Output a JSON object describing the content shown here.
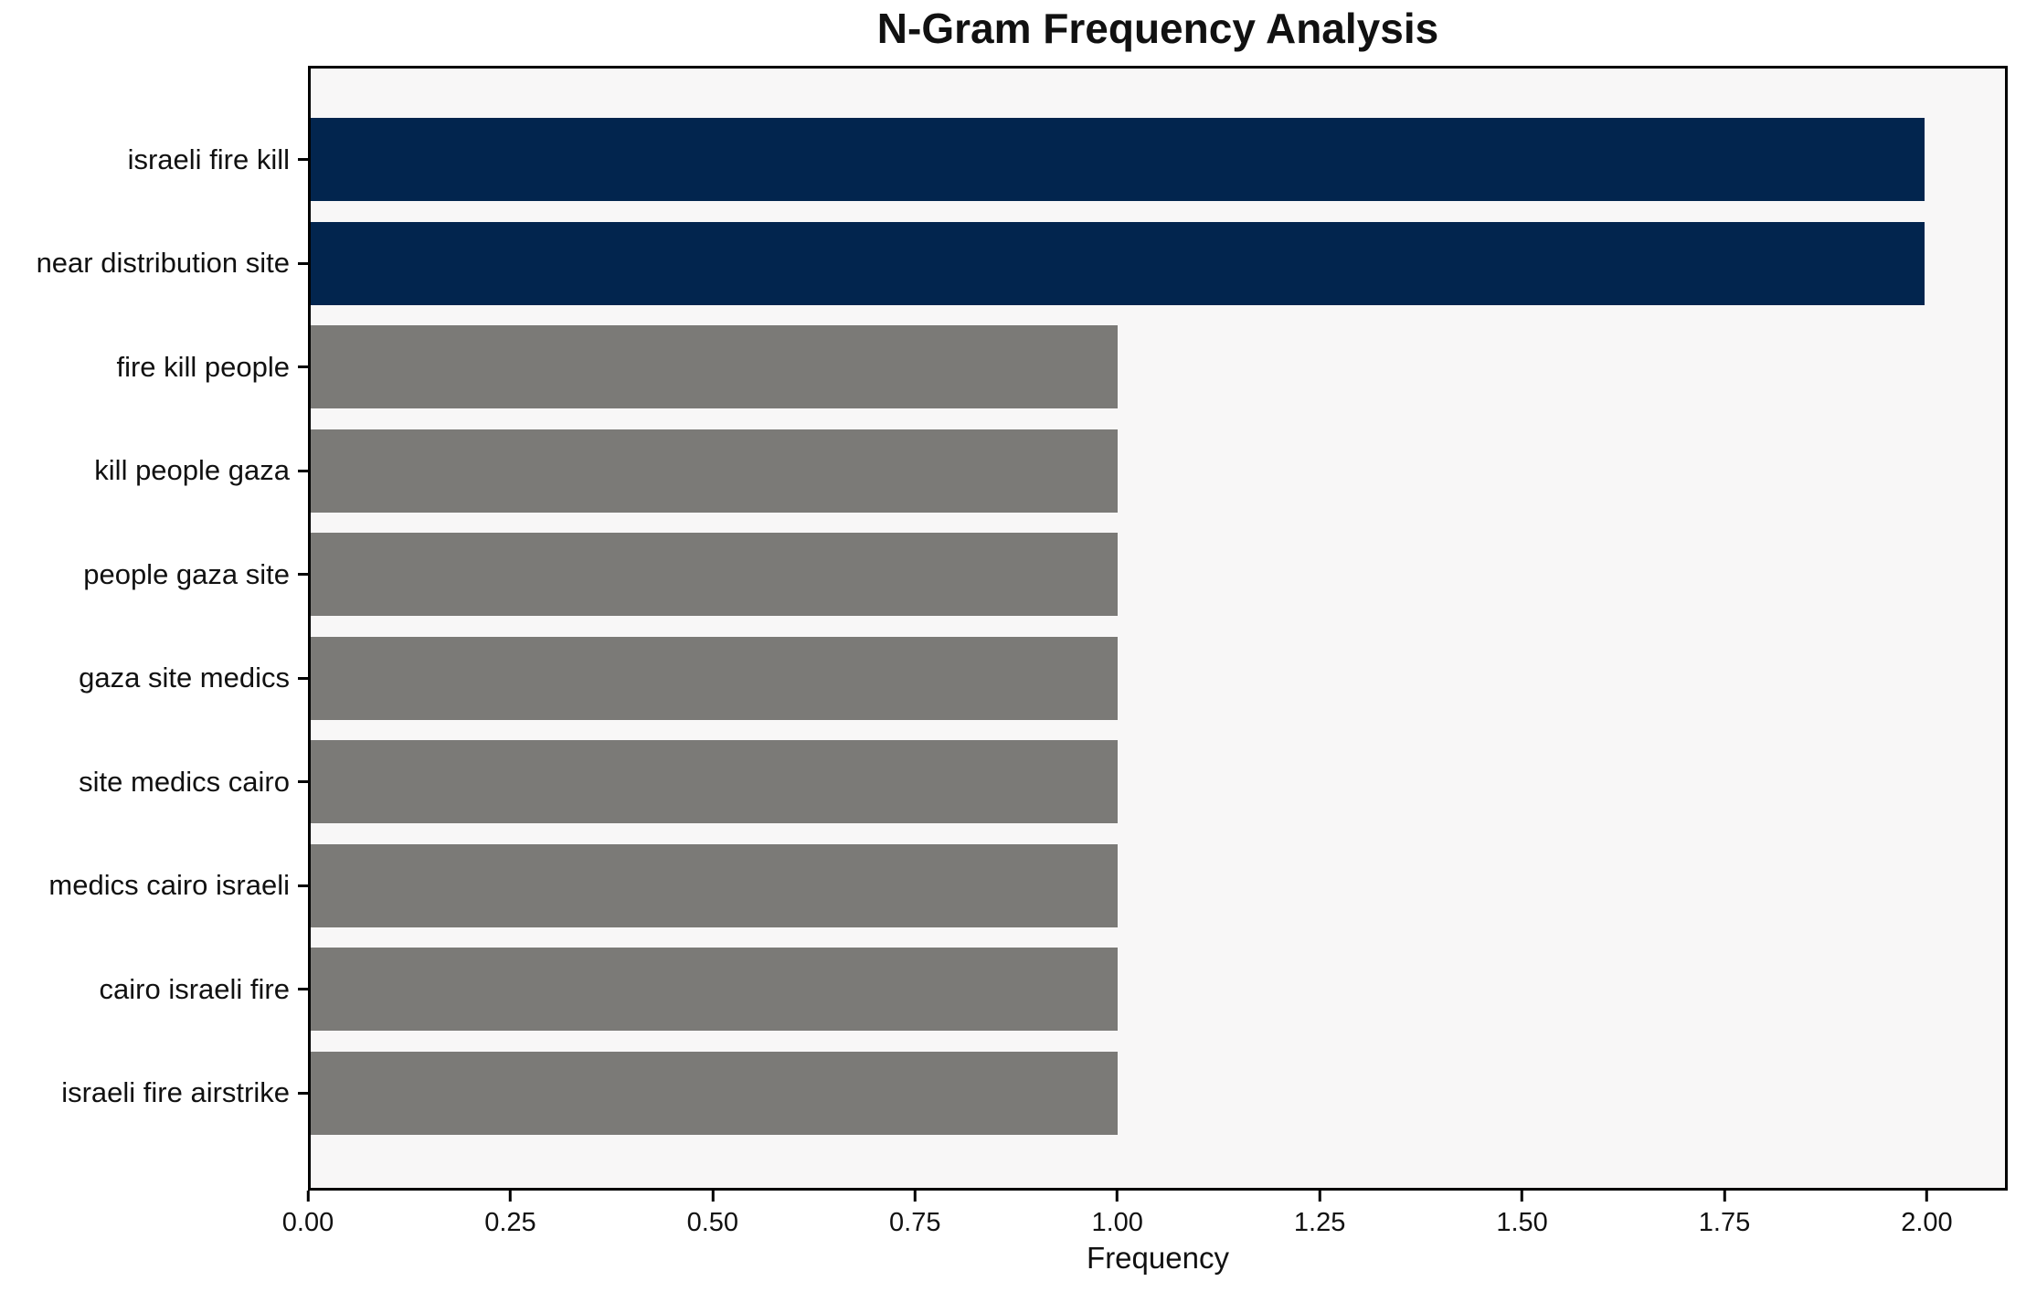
{
  "chart_data": {
    "type": "bar",
    "orientation": "horizontal",
    "title": "N-Gram Frequency Analysis",
    "xlabel": "Frequency",
    "ylabel": "",
    "categories": [
      "israeli fire kill",
      "near distribution site",
      "fire kill people",
      "kill people gaza",
      "people gaza site",
      "gaza site medics",
      "site medics cairo",
      "medics cairo israeli",
      "cairo israeli fire",
      "israeli fire airstrike"
    ],
    "values": [
      2,
      2,
      1,
      1,
      1,
      1,
      1,
      1,
      1,
      1
    ],
    "bar_colors": [
      "#02254E",
      "#02254E",
      "#7B7A77",
      "#7B7A77",
      "#7B7A77",
      "#7B7A77",
      "#7B7A77",
      "#7B7A77",
      "#7B7A77",
      "#7B7A77"
    ],
    "xlim": [
      0,
      2.1
    ],
    "xtick_values": [
      0,
      0.25,
      0.5,
      0.75,
      1.0,
      1.25,
      1.5,
      1.75,
      2.0
    ],
    "xtick_labels": [
      "0.00",
      "0.25",
      "0.50",
      "0.75",
      "1.00",
      "1.25",
      "1.50",
      "1.75",
      "2.00"
    ],
    "grid": false,
    "legend": null,
    "colors": {
      "highlight_bar": "#02254E",
      "default_bar": "#7B7A77",
      "plot_background": "#F8F7F7",
      "figure_background": "#FFFFFF",
      "axis_line": "#000000",
      "text": "#111111"
    }
  }
}
